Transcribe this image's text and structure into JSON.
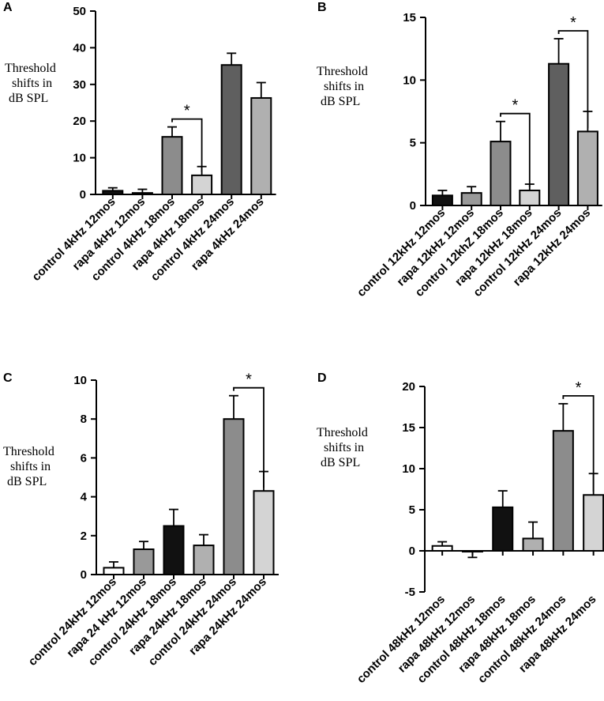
{
  "chart_data": [
    {
      "panel": "A",
      "type": "bar",
      "ylabel": [
        "Threshold",
        "shifts in",
        "dB SPL"
      ],
      "ylim": [
        0,
        50
      ],
      "yticks": [
        0,
        10,
        20,
        30,
        40,
        50
      ],
      "categories": [
        "control 4kHz 12mos",
        "rapa 4kHz 12mos",
        "control 4kHz 18mos",
        "rapa 4kHz 18mos",
        "control 4kHz 24mos",
        "rapa 4kHz 24mos"
      ],
      "values": [
        1.0,
        0.4,
        15.7,
        5.2,
        35.3,
        26.3
      ],
      "errors": [
        0.8,
        1.0,
        2.7,
        2.4,
        3.2,
        4.2
      ],
      "colors": [
        "#111111",
        "#999999",
        "#8c8c8c",
        "#d4d4d4",
        "#5f5f5f",
        "#b0b0b0"
      ],
      "significance": [
        {
          "from": 2,
          "to": 3,
          "label": "*"
        }
      ]
    },
    {
      "panel": "B",
      "type": "bar",
      "ylabel": [
        "Threshold",
        "shifts in",
        "dB SPL"
      ],
      "ylim": [
        0,
        15
      ],
      "yticks": [
        0,
        5,
        10,
        15
      ],
      "categories": [
        "control 12kHz 12mos",
        "rapa 12kHz 12mos",
        "control 12khZ 18mos",
        "rapa 12kHz 18mos",
        "control 12kHz 24mos",
        "rapa 12kHz 24mos"
      ],
      "values": [
        0.8,
        1.0,
        5.1,
        1.2,
        11.3,
        5.9
      ],
      "errors": [
        0.4,
        0.5,
        1.6,
        0.5,
        2.0,
        1.6
      ],
      "colors": [
        "#111111",
        "#999999",
        "#8c8c8c",
        "#d4d4d4",
        "#5f5f5f",
        "#b0b0b0"
      ],
      "significance": [
        {
          "from": 2,
          "to": 3,
          "label": "*"
        },
        {
          "from": 4,
          "to": 5,
          "label": "*"
        }
      ]
    },
    {
      "panel": "C",
      "type": "bar",
      "ylabel": [
        "Threshold",
        "shifts in",
        "dB SPL"
      ],
      "ylim": [
        0,
        10
      ],
      "yticks": [
        0,
        2,
        4,
        6,
        8,
        10
      ],
      "categories": [
        "control 24kHz 12mos",
        "rapa 24 kHz 12mos",
        "control 24kHz 18mos",
        "rapa 24kHz 18mos",
        "control 24kHz 24mos",
        "rapa 24kHz 24mos"
      ],
      "values": [
        0.35,
        1.3,
        2.5,
        1.5,
        8.0,
        4.3
      ],
      "errors": [
        0.3,
        0.4,
        0.85,
        0.55,
        1.2,
        1.0
      ],
      "colors": [
        "#ffffff",
        "#999999",
        "#111111",
        "#b0b0b0",
        "#8c8c8c",
        "#d4d4d4"
      ],
      "significance": [
        {
          "from": 4,
          "to": 5,
          "label": "*"
        }
      ]
    },
    {
      "panel": "D",
      "type": "bar",
      "ylabel": [
        "Threshold",
        "shifts in",
        "dB SPL"
      ],
      "ylim": [
        -5,
        20
      ],
      "yticks": [
        -5,
        0,
        5,
        10,
        15,
        20
      ],
      "categories": [
        "control 48kHz 12mos",
        "rapa 48kHz 12mos",
        "control 48kHz 18mos",
        "rapa 48kHz 18mos",
        "control 48kHz 24mos",
        "rapa 48kHz 24mos"
      ],
      "values": [
        0.6,
        -0.1,
        5.3,
        1.5,
        14.6,
        6.8
      ],
      "errors": [
        0.5,
        0.7,
        2.0,
        2.0,
        3.3,
        2.6
      ],
      "colors": [
        "#ffffff",
        "#999999",
        "#111111",
        "#b0b0b0",
        "#8c8c8c",
        "#d4d4d4"
      ],
      "significance": [
        {
          "from": 4,
          "to": 5,
          "label": "*"
        }
      ]
    }
  ]
}
